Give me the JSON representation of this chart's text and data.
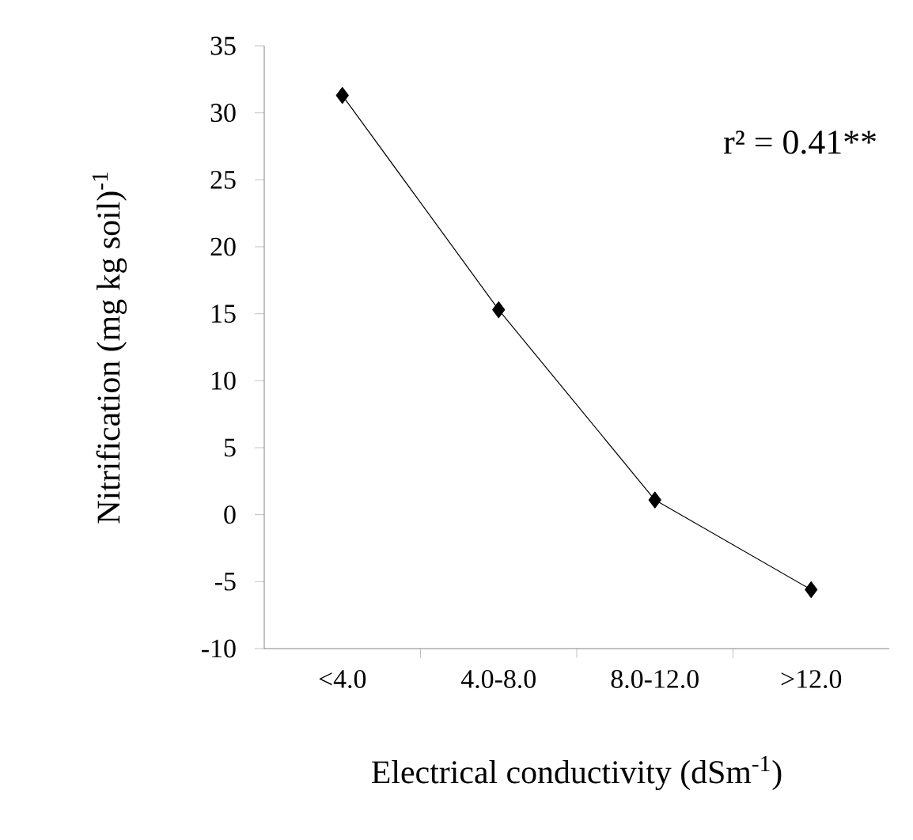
{
  "chart_data": {
    "type": "line",
    "xlabel": "Electrical conductivity (dSm$^{-1}$)",
    "ylabel": "Nitrification (mg kg soil)$^{-1}$",
    "categories": [
      "<4.0",
      "4.0-8.0",
      "8.0-12.0",
      ">12.0"
    ],
    "series": [
      {
        "color": "#000000",
        "values": [
          31.3,
          15.3,
          1.1,
          -5.6
        ]
      }
    ],
    "ylim": [
      -10,
      35
    ],
    "yticks": [
      -10,
      -5,
      0,
      5,
      10,
      15,
      20,
      25,
      30,
      35
    ],
    "marker": "diamond",
    "line_style": "solid",
    "grid": false,
    "annotations": [
      "r² = 0.41**"
    ]
  }
}
